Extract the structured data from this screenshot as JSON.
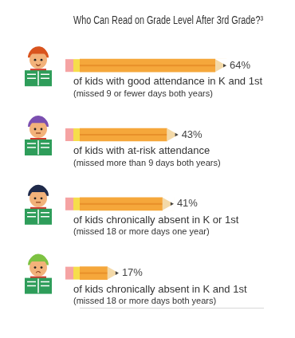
{
  "chart_data": {
    "type": "bar",
    "orientation": "horizontal",
    "title": "Who Can Read on Grade Level After 3rd Grade?³",
    "categories": [
      "of kids with good attendance in K and 1st",
      "of kids with at-risk attendance",
      "of kids chronically absent in K or 1st",
      "of kids chronically absent in K and 1st"
    ],
    "annotations": [
      "(missed 9 or fewer days both years)",
      "(missed more than 9 days both years)",
      "(missed 18 or more days one year)",
      "(missed 18 or more days both years)"
    ],
    "values": [
      64,
      43,
      41,
      17
    ],
    "value_labels": [
      "64%",
      "43%",
      "41%",
      "17%"
    ],
    "data_labels": true,
    "color": "#f5a73b",
    "xlim": [
      0,
      80
    ],
    "tick_labels": false,
    "grid": false
  }
}
